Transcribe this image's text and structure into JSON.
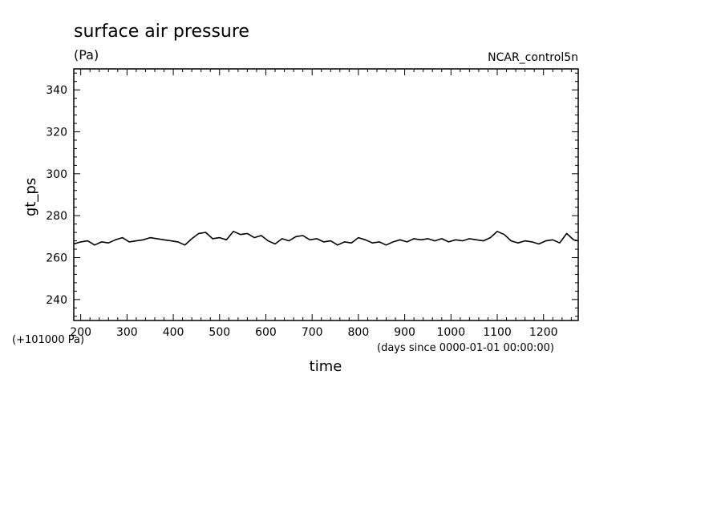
{
  "chart_data": {
    "type": "line",
    "title": "surface air pressure",
    "units_label": "(Pa)",
    "experiment_label": "NCAR_control5n",
    "ylabel": "gt_ps",
    "xlabel": "time",
    "y_offset_label": "(+101000 Pa)",
    "x_units_label": "(days since 0000-01-01 00:00:00)",
    "xlim": [
      185,
      1275
    ],
    "ylim": [
      230,
      350
    ],
    "x_ticks": [
      200,
      300,
      400,
      500,
      600,
      700,
      800,
      900,
      1000,
      1100,
      1200
    ],
    "x_tick_labels": [
      "200",
      "300",
      "400",
      "500",
      "600",
      "700",
      "800",
      "900",
      "1000",
      "1100",
      "1200"
    ],
    "y_ticks": [
      240,
      260,
      280,
      300,
      320,
      340
    ],
    "y_tick_labels": [
      "240",
      "260",
      "280",
      "300",
      "320",
      "340"
    ],
    "series_color": "#000000",
    "series": [
      {
        "x": [
          185,
          200,
          215,
          230,
          245,
          260,
          275,
          290,
          305,
          320,
          335,
          350,
          365,
          380,
          395,
          410,
          425,
          440,
          455,
          470,
          485,
          500,
          515,
          530,
          545,
          560,
          575,
          590,
          605,
          620,
          635,
          650,
          665,
          680,
          695,
          710,
          725,
          740,
          755,
          770,
          785,
          800,
          815,
          830,
          845,
          860,
          875,
          890,
          905,
          920,
          935,
          950,
          965,
          980,
          995,
          1010,
          1025,
          1040,
          1055,
          1070,
          1085,
          1100,
          1115,
          1130,
          1145,
          1160,
          1175,
          1190,
          1205,
          1220,
          1235,
          1250,
          1265,
          1275
        ],
        "values": [
          266.5,
          267.5,
          268,
          266,
          267.5,
          267,
          268.5,
          269.5,
          267.5,
          268,
          268.5,
          269.5,
          269,
          268.5,
          268,
          267.5,
          266,
          269,
          271.5,
          272,
          269,
          269.5,
          268.5,
          272.5,
          271,
          271.5,
          269.5,
          270.5,
          268,
          266.5,
          269,
          268,
          270,
          270.5,
          268.5,
          269,
          267.5,
          268,
          266,
          267.5,
          267,
          269.5,
          268.5,
          267,
          267.5,
          266,
          267.5,
          268.5,
          267.5,
          269,
          268.5,
          269,
          268,
          269,
          267.5,
          268.5,
          268,
          269,
          268.5,
          268,
          269.5,
          272.5,
          271,
          268,
          267,
          268,
          267.5,
          266.5,
          268,
          268.5,
          267,
          271.5,
          268.5,
          268
        ]
      }
    ]
  }
}
